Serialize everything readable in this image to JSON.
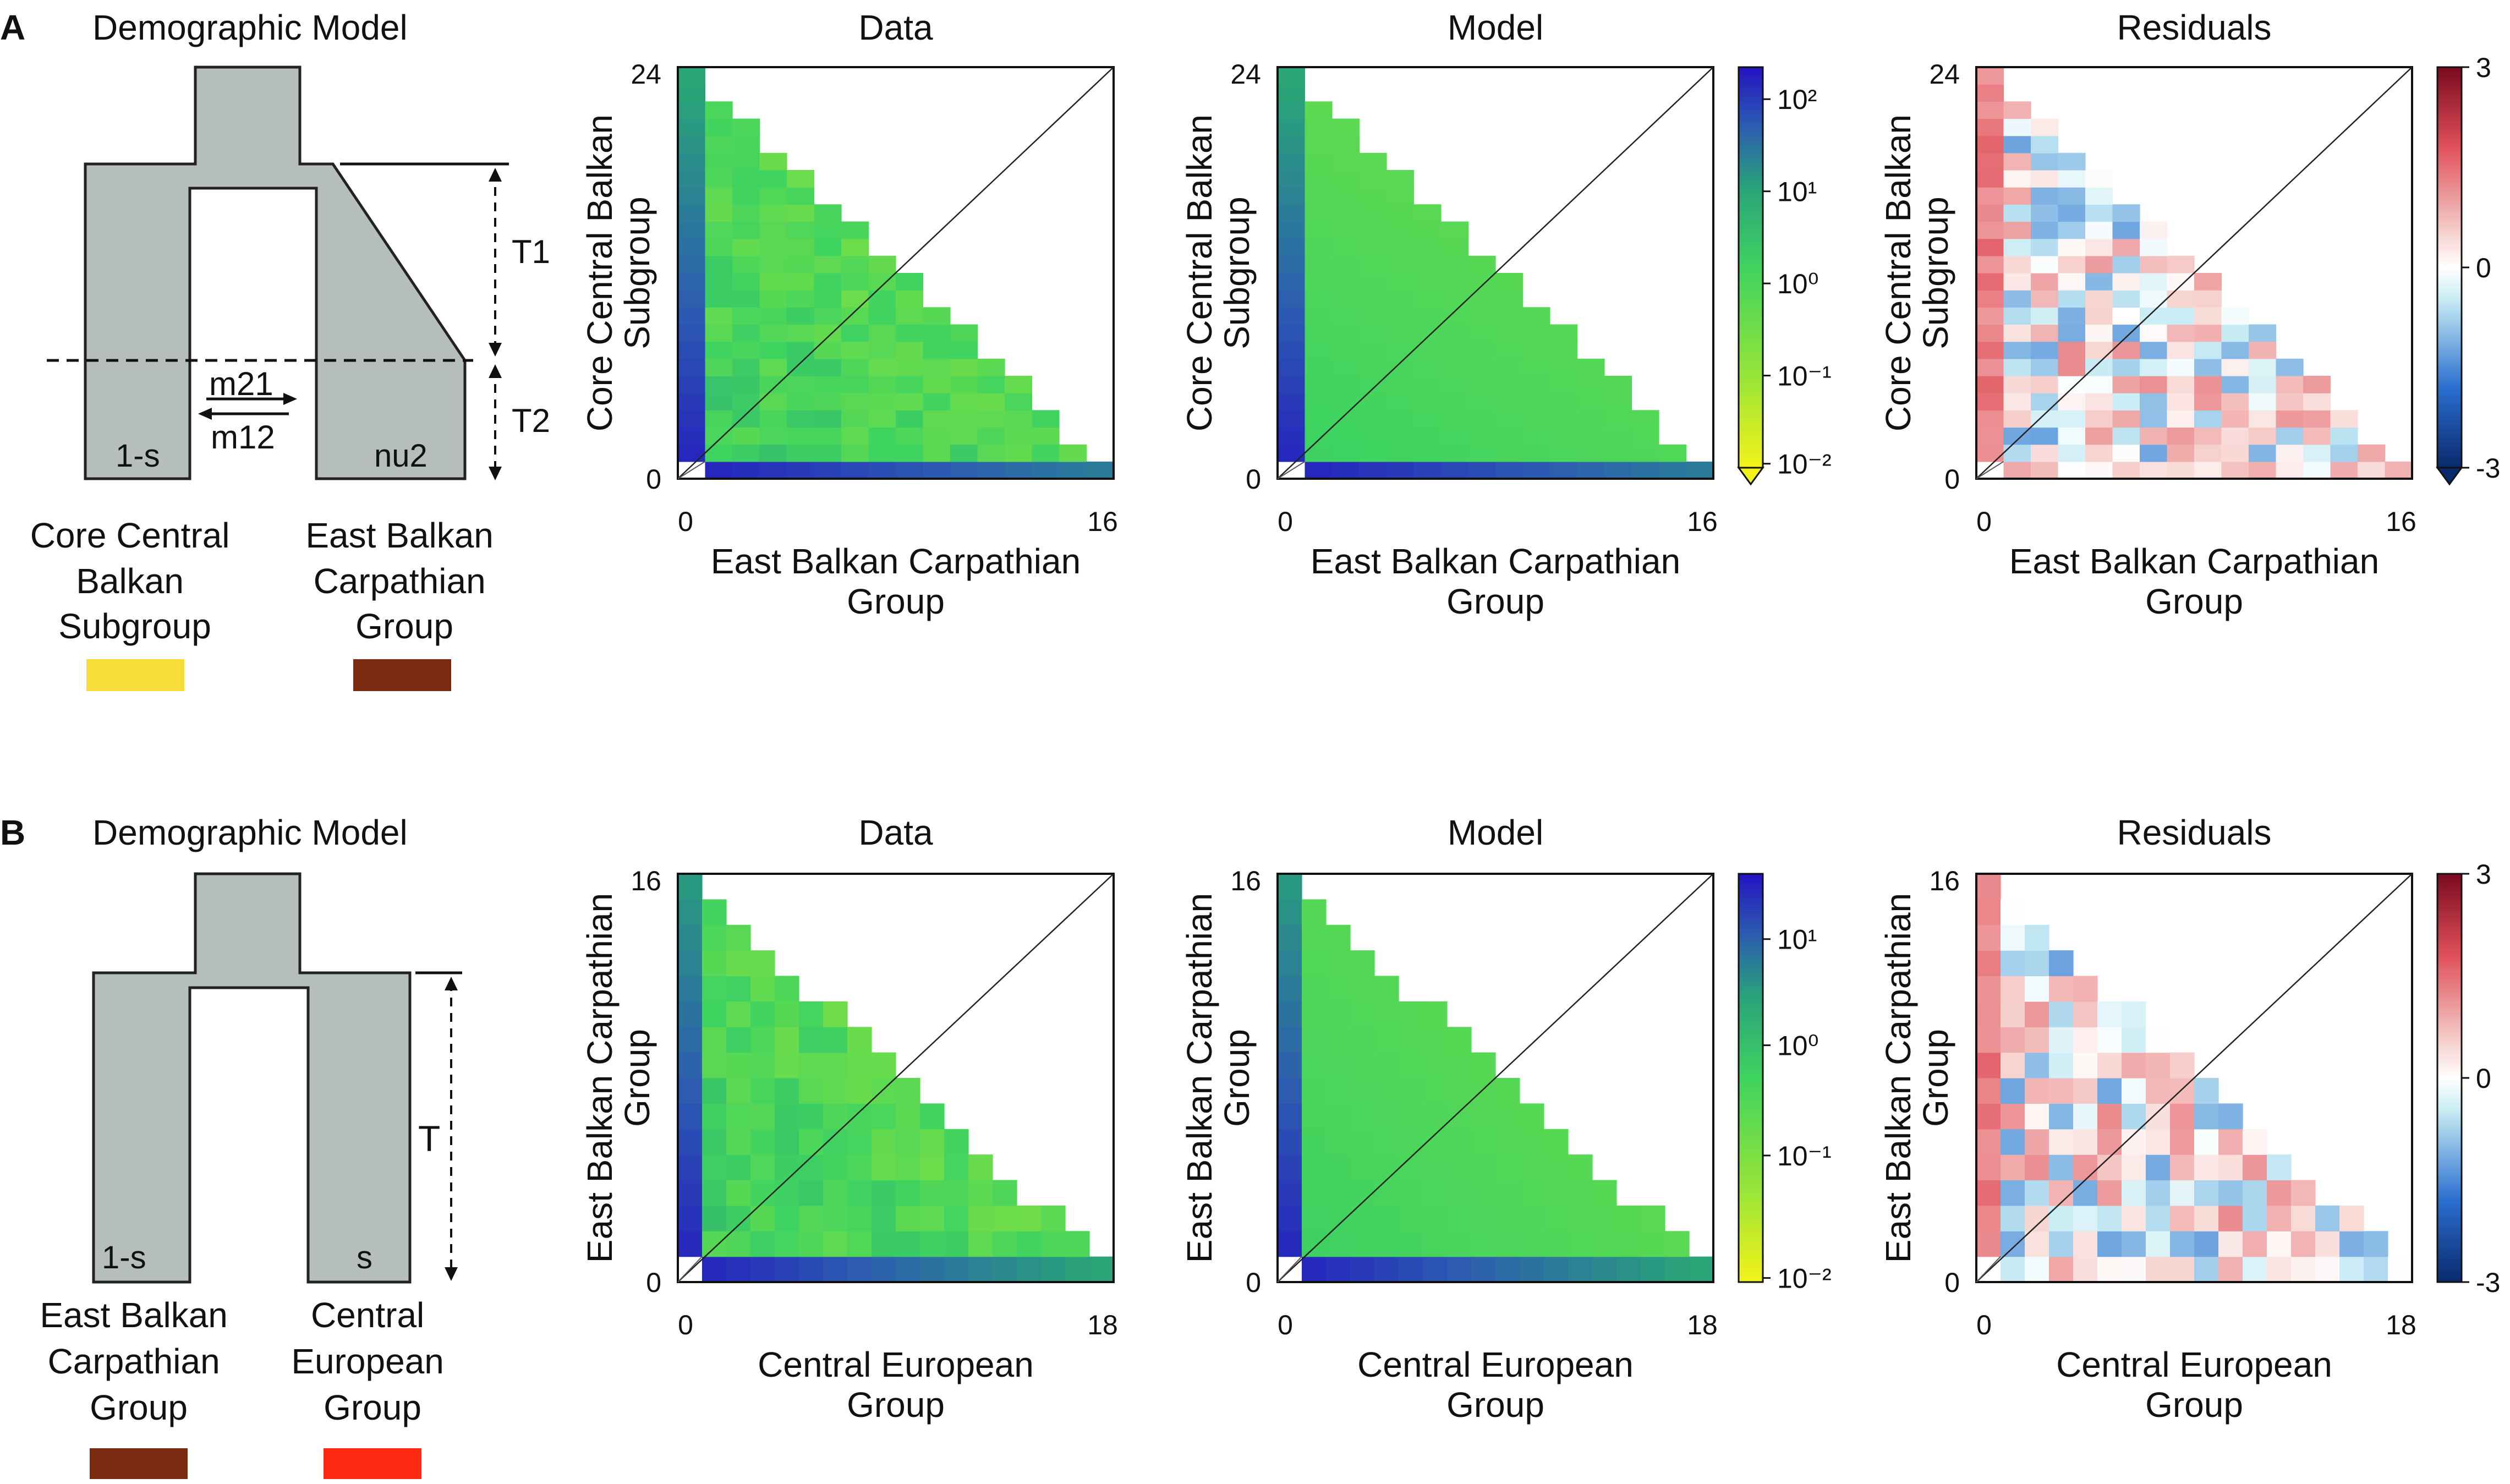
{
  "figure": {
    "panels": [
      {
        "letter": "A",
        "model": {
          "title": "Demographic Model",
          "param_T1": "T1",
          "param_T2": "T2",
          "param_m21": "m21",
          "param_m12": "m12",
          "label_left": "1-s",
          "label_right": "nu2",
          "pop_left_name": [
            "Core Central",
            "Balkan",
            "Subgroup"
          ],
          "pop_right_name": [
            "East Balkan",
            "Carpathian",
            "Group"
          ],
          "pop_left_color": "#f8dc3a",
          "pop_right_color": "#7a2a0e"
        },
        "spectra": [
          {
            "title": "Data",
            "ylabel": [
              "Core Central Balkan",
              "Subgroup"
            ],
            "xlabel": [
              "East Balkan Carpathian",
              "Group"
            ],
            "ytick_max": "24",
            "xtick_max": "16"
          },
          {
            "title": "Model",
            "ylabel": [
              "Core Central Balkan",
              "Subgroup"
            ],
            "xlabel": [
              "East Balkan Carpathian",
              "Group"
            ],
            "ytick_max": "24",
            "xtick_max": "16"
          },
          {
            "title": "Residuals",
            "ylabel": [
              "Core Central Balkan",
              "Subgroup"
            ],
            "xlabel": [
              "East Balkan Carpathian",
              "Group"
            ],
            "ytick_max": "24",
            "xtick_max": "16"
          }
        ],
        "colorbar_log": {
          "ticks": [
            "10²",
            "10¹",
            "10⁰",
            "10⁻¹",
            "10⁻²"
          ]
        },
        "colorbar_resid": {
          "ticks": [
            "3",
            "0",
            "-3"
          ]
        }
      },
      {
        "letter": "B",
        "model": {
          "title": "Demographic Model",
          "param_T": "T",
          "label_left": "1-s",
          "label_right": "s",
          "pop_left_name": [
            "East Balkan",
            "Carpathian",
            "Group"
          ],
          "pop_right_name": [
            "Central",
            "European",
            "Group"
          ],
          "pop_left_color": "#7a2a0e",
          "pop_right_color": "#ff2a12"
        },
        "spectra": [
          {
            "title": "Data",
            "ylabel": [
              "East Balkan Carpathian",
              "Group"
            ],
            "xlabel": [
              "Central European",
              "Group"
            ],
            "ytick_max": "16",
            "xtick_max": "18"
          },
          {
            "title": "Model",
            "ylabel": [
              "East Balkan Carpathian",
              "Group"
            ],
            "xlabel": [
              "Central European",
              "Group"
            ],
            "ytick_max": "16",
            "xtick_max": "18"
          },
          {
            "title": "Residuals",
            "ylabel": [
              "East Balkan Carpathian",
              "Group"
            ],
            "xlabel": [
              "Central European",
              "Group"
            ],
            "ytick_max": "16",
            "xtick_max": "18"
          }
        ],
        "colorbar_log": {
          "ticks": [
            "10¹",
            "10⁰",
            "10⁻¹",
            "10⁻²"
          ]
        },
        "colorbar_resid": {
          "ticks": [
            "3",
            "0",
            "-3"
          ]
        }
      }
    ],
    "tick_zero": "0"
  },
  "chart_data": [
    {
      "type": "heatmap",
      "title": "Data",
      "panel": "A",
      "n_rows": 24,
      "n_cols": 16,
      "xlabel": "East Balkan Carpathian Group",
      "ylabel": "Core Central Balkan Subgroup",
      "scale": "log",
      "zlim": [
        0.01,
        100
      ],
      "cmap": "yellow-green-blue"
    },
    {
      "type": "heatmap",
      "title": "Model",
      "panel": "A",
      "n_rows": 24,
      "n_cols": 16,
      "xlabel": "East Balkan Carpathian Group",
      "ylabel": "Core Central Balkan Subgroup",
      "scale": "log",
      "zlim": [
        0.01,
        100
      ],
      "cmap": "yellow-green-blue"
    },
    {
      "type": "heatmap",
      "title": "Residuals",
      "panel": "A",
      "n_rows": 24,
      "n_cols": 16,
      "xlabel": "East Balkan Carpathian Group",
      "ylabel": "Core Central Balkan Subgroup",
      "scale": "linear",
      "zlim": [
        -3,
        3
      ],
      "cmap": "blue-white-red"
    },
    {
      "type": "heatmap",
      "title": "Data",
      "panel": "B",
      "n_rows": 16,
      "n_cols": 18,
      "xlabel": "Central European Group",
      "ylabel": "East Balkan Carpathian Group",
      "scale": "log",
      "zlim": [
        0.01,
        50
      ],
      "cmap": "yellow-green-blue"
    },
    {
      "type": "heatmap",
      "title": "Model",
      "panel": "B",
      "n_rows": 16,
      "n_cols": 18,
      "xlabel": "Central European Group",
      "ylabel": "East Balkan Carpathian Group",
      "scale": "log",
      "zlim": [
        0.01,
        50
      ],
      "cmap": "yellow-green-blue"
    },
    {
      "type": "heatmap",
      "title": "Residuals",
      "panel": "B",
      "n_rows": 16,
      "n_cols": 18,
      "xlabel": "Central European Group",
      "ylabel": "East Balkan Carpathian Group",
      "scale": "linear",
      "zlim": [
        -3,
        3
      ],
      "cmap": "blue-white-red"
    }
  ]
}
